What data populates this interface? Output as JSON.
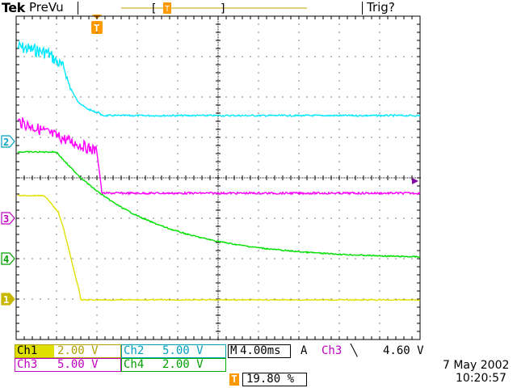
{
  "header": {
    "brand": "Tek",
    "mode": "PreVu",
    "trigger_status": "Trig?",
    "trigger_marker": "T"
  },
  "markers": {
    "ch1": "1",
    "ch2": "2",
    "ch3": "3",
    "ch4": "4"
  },
  "readouts": {
    "ch1": {
      "label": "Ch1",
      "value": "2.00 V"
    },
    "ch2": {
      "label": "Ch2",
      "value": "5.00 V"
    },
    "ch3": {
      "label": "Ch3",
      "value": "5.00 V"
    },
    "ch4": {
      "label": "Ch4",
      "value": "2.00 V"
    },
    "timebase": {
      "label": "M",
      "value": "4.00ms"
    },
    "trigger": {
      "mode": "A",
      "source": "Ch3",
      "slope": "╲",
      "level": "4.60 V"
    },
    "trigger_position": {
      "marker": "T",
      "value": "19.80 %"
    }
  },
  "datetime": {
    "date": "7 May 2002",
    "time": "10:20:57"
  },
  "colors": {
    "ch1": "#e0e000",
    "ch2": "#00e8ff",
    "ch3": "#ff00ff",
    "ch4": "#00e000",
    "trigger": "#ff9900",
    "grid": "#000000"
  }
}
